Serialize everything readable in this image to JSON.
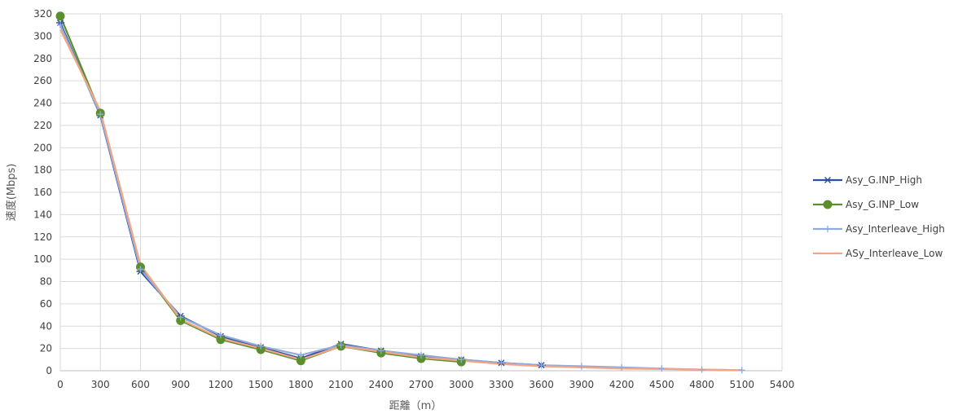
{
  "chart_data": {
    "type": "line",
    "xlabel": "距離（m）",
    "ylabel": "速度(Mbps)",
    "xlim": [
      0,
      5400
    ],
    "ylim": [
      0,
      320
    ],
    "x_ticks": [
      0,
      300,
      600,
      900,
      1200,
      1500,
      1800,
      2100,
      2400,
      2700,
      3000,
      3300,
      3600,
      3900,
      4200,
      4500,
      4800,
      5100,
      5400
    ],
    "y_ticks": [
      0,
      20,
      40,
      60,
      80,
      100,
      120,
      140,
      160,
      180,
      200,
      220,
      240,
      260,
      280,
      300,
      320
    ],
    "grid": true,
    "legend_position": "right",
    "series": [
      {
        "name": "Asy_G.INP_High",
        "color": "#2e4f9e",
        "marker": "asterisk",
        "x": [
          0,
          300,
          600,
          900,
          1200,
          1500,
          1800,
          2100,
          2400,
          2700,
          3000,
          3300,
          3600
        ],
        "y": [
          312,
          229,
          89,
          49,
          31,
          21,
          11,
          24,
          18,
          13,
          10,
          7,
          5
        ]
      },
      {
        "name": "Asy_G.INP_Low",
        "color": "#5b8f2e",
        "marker": "circle",
        "x": [
          0,
          300,
          600,
          900,
          1200,
          1500,
          1800,
          2100,
          2400,
          2700,
          3000
        ],
        "y": [
          318,
          231,
          93,
          45,
          28,
          19,
          9,
          22,
          16,
          11,
          8
        ]
      },
      {
        "name": "Asy_Interleave_High",
        "color": "#8faadc",
        "marker": "plus",
        "x": [
          0,
          300,
          600,
          900,
          1200,
          1500,
          1800,
          2100,
          2400,
          2700,
          3000,
          3300,
          3600,
          3900,
          4200,
          4500,
          4800,
          5100
        ],
        "y": [
          310,
          230,
          91,
          48,
          32,
          22,
          14,
          23,
          18,
          14,
          10,
          7,
          5,
          4,
          3,
          2,
          1,
          0.5
        ]
      },
      {
        "name": "ASy_Interleave_Low",
        "color": "#f4a582",
        "marker": "none",
        "x": [
          0,
          300,
          600,
          900,
          1200,
          1500,
          1800,
          2100,
          2400,
          2700,
          3000,
          3300,
          3600,
          3900,
          4200,
          4500,
          4800,
          5100
        ],
        "y": [
          306,
          233,
          95,
          46,
          29,
          20,
          10,
          22,
          17,
          12,
          9,
          6,
          4,
          3,
          2,
          1.5,
          1,
          0.5
        ]
      }
    ]
  }
}
